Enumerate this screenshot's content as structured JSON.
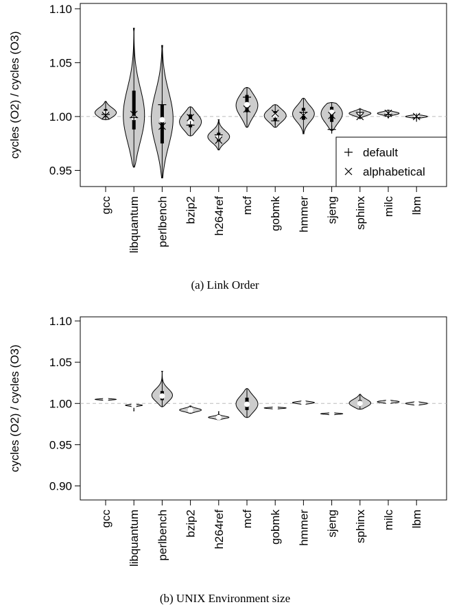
{
  "chart_data": [
    {
      "type": "violin",
      "caption": "(a) Link Order",
      "xlabel": "",
      "ylabel": "cycles (O2) / cycles (O3)",
      "ylim": [
        0.935,
        1.105
      ],
      "yticks": [
        "0.95",
        "1.00",
        "1.05",
        "1.10"
      ],
      "reference_line": 1.0,
      "legend": {
        "position": "bottom-right",
        "entries": [
          {
            "label": "default",
            "marker": "+"
          },
          {
            "label": "alphabetical",
            "marker": "x"
          }
        ]
      },
      "categories": [
        "gcc",
        "libquantum",
        "perlbench",
        "bzip2",
        "h264ref",
        "mcf",
        "gobmk",
        "hmmer",
        "sjeng",
        "sphinx",
        "milc",
        "lbm"
      ],
      "distributions": [
        {
          "min": 0.997,
          "max": 1.014,
          "q1": 1.0,
          "median": 1.003,
          "q3": 1.007,
          "default": 1.002,
          "alphabetical": 1.001
        },
        {
          "min": 0.953,
          "max": 1.082,
          "q1": 0.988,
          "median": 0.999,
          "q3": 1.024,
          "default": 0.999,
          "alphabetical": 1.002
        },
        {
          "min": 0.943,
          "max": 1.066,
          "q1": 0.975,
          "median": 0.997,
          "q3": 1.011,
          "default": 1.011,
          "alphabetical": 0.991
        },
        {
          "min": 0.982,
          "max": 1.009,
          "q1": 0.99,
          "median": 0.995,
          "q3": 1.002,
          "default": 0.992,
          "alphabetical": 0.999
        },
        {
          "min": 0.969,
          "max": 0.997,
          "q1": 0.977,
          "median": 0.981,
          "q3": 0.985,
          "default": 0.983,
          "alphabetical": 0.978
        },
        {
          "min": 0.99,
          "max": 1.027,
          "q1": 1.004,
          "median": 1.011,
          "q3": 1.02,
          "default": 1.018,
          "alphabetical": 1.007
        },
        {
          "min": 0.99,
          "max": 1.011,
          "q1": 0.996,
          "median": 1.001,
          "q3": 1.005,
          "default": 0.996,
          "alphabetical": 1.003
        },
        {
          "min": 0.984,
          "max": 1.017,
          "q1": 0.997,
          "median": 1.003,
          "q3": 1.008,
          "default": 1.004,
          "alphabetical": 1.001
        },
        {
          "min": 0.987,
          "max": 1.013,
          "q1": 0.995,
          "median": 1.004,
          "q3": 1.009,
          "default": 0.988,
          "alphabetical": 1.001
        },
        {
          "min": 0.998,
          "max": 1.007,
          "q1": 1.002,
          "median": 1.003,
          "q3": 1.005,
          "default": 1.004,
          "alphabetical": 1.0
        },
        {
          "min": 0.999,
          "max": 1.006,
          "q1": 1.002,
          "median": 1.003,
          "q3": 1.004,
          "default": 1.002,
          "alphabetical": 1.003
        },
        {
          "min": 0.998,
          "max": 1.002,
          "q1": 0.9995,
          "median": 1.0,
          "q3": 1.001,
          "default": 0.999,
          "alphabetical": 1.0
        }
      ]
    },
    {
      "type": "violin",
      "caption": "(b) UNIX Environment size",
      "xlabel": "",
      "ylabel": "cycles (O2) / cycles (O3)",
      "ylim": [
        0.883,
        1.105
      ],
      "yticks": [
        "0.90",
        "0.95",
        "1.00",
        "1.05",
        "1.10"
      ],
      "reference_line": 1.0,
      "categories": [
        "gcc",
        "libquantum",
        "perlbench",
        "bzip2",
        "h264ref",
        "mcf",
        "gobmk",
        "hmmer",
        "sjeng",
        "sphinx",
        "milc",
        "lbm"
      ],
      "distributions": [
        {
          "min": 1.003,
          "max": 1.006,
          "q1": 1.004,
          "median": 1.005,
          "q3": 1.005
        },
        {
          "min": 0.991,
          "max": 0.999,
          "q1": 0.997,
          "median": 0.998,
          "q3": 0.998
        },
        {
          "min": 0.996,
          "max": 1.039,
          "q1": 1.004,
          "median": 1.009,
          "q3": 1.015
        },
        {
          "min": 0.988,
          "max": 0.997,
          "q1": 0.991,
          "median": 0.992,
          "q3": 0.994
        },
        {
          "min": 0.98,
          "max": 0.99,
          "q1": 0.982,
          "median": 0.983,
          "q3": 0.984
        },
        {
          "min": 0.983,
          "max": 1.018,
          "q1": 0.992,
          "median": 0.999,
          "q3": 1.007
        },
        {
          "min": 0.993,
          "max": 0.996,
          "q1": 0.994,
          "median": 0.9945,
          "q3": 0.995
        },
        {
          "min": 0.999,
          "max": 1.003,
          "q1": 1.0,
          "median": 1.001,
          "q3": 1.002
        },
        {
          "min": 0.986,
          "max": 0.989,
          "q1": 0.987,
          "median": 0.9875,
          "q3": 0.988
        },
        {
          "min": 0.993,
          "max": 1.011,
          "q1": 0.997,
          "median": 1.0,
          "q3": 1.004
        },
        {
          "min": 1.0,
          "max": 1.004,
          "q1": 1.001,
          "median": 1.002,
          "q3": 1.003
        },
        {
          "min": 0.998,
          "max": 1.002,
          "q1": 0.999,
          "median": 1.0,
          "q3": 1.001
        }
      ]
    }
  ]
}
